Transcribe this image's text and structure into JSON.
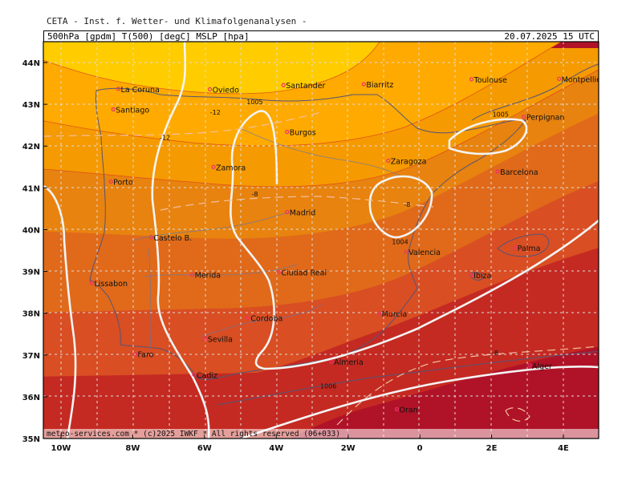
{
  "header": {
    "title": "CETA - Inst. f. Wetter- und Klimafolgenanalysen -",
    "fields": "500hPa [gpdm] T(500) [degC] MSLP [hpa]",
    "datetime": "20.07.2025 15 UTC"
  },
  "footer": "meteo-services.com * (c)2025 IWKF * All rights reserved (06+033)",
  "axes": {
    "lat_labels": [
      "44N",
      "43N",
      "42N",
      "41N",
      "40N",
      "39N",
      "38N",
      "37N",
      "36N",
      "35N"
    ],
    "lon_labels": [
      "10W",
      "8W",
      "6W",
      "4W",
      "2W",
      "0",
      "2E",
      "4E"
    ]
  },
  "cities": [
    {
      "name": "La Coruna",
      "lon": -8.4,
      "lat": 43.37
    },
    {
      "name": "Oviedo",
      "lon": -5.85,
      "lat": 43.36
    },
    {
      "name": "Santander",
      "lon": -3.8,
      "lat": 43.46
    },
    {
      "name": "Biarritz",
      "lon": -1.56,
      "lat": 43.48
    },
    {
      "name": "Toulouse",
      "lon": 1.44,
      "lat": 43.6
    },
    {
      "name": "Montpellier",
      "lon": 3.88,
      "lat": 43.61
    },
    {
      "name": "Santiago",
      "lon": -8.54,
      "lat": 42.88
    },
    {
      "name": "Perpignan",
      "lon": 2.9,
      "lat": 42.7
    },
    {
      "name": "Burgos",
      "lon": -3.7,
      "lat": 42.34
    },
    {
      "name": "Zaragoza",
      "lon": -0.88,
      "lat": 41.65
    },
    {
      "name": "Barcelona",
      "lon": 2.17,
      "lat": 41.39
    },
    {
      "name": "Zamora",
      "lon": -5.75,
      "lat": 41.5
    },
    {
      "name": "Porto",
      "lon": -8.61,
      "lat": 41.15
    },
    {
      "name": "Madrid",
      "lon": -3.7,
      "lat": 40.42
    },
    {
      "name": "Castelo B.",
      "lon": -7.49,
      "lat": 39.82
    },
    {
      "name": "Valencia",
      "lon": -0.38,
      "lat": 39.47
    },
    {
      "name": "Palma",
      "lon": 2.65,
      "lat": 39.57
    },
    {
      "name": "Ibiza",
      "lon": 1.43,
      "lat": 38.91
    },
    {
      "name": "Lissabon",
      "lon": -9.14,
      "lat": 38.72
    },
    {
      "name": "Merida",
      "lon": -6.34,
      "lat": 38.92
    },
    {
      "name": "Ciudad Real",
      "lon": -3.93,
      "lat": 38.98
    },
    {
      "name": "Murcia",
      "lon": -1.13,
      "lat": 37.99
    },
    {
      "name": "Cordoba",
      "lon": -4.78,
      "lat": 37.89
    },
    {
      "name": "Faro",
      "lon": -7.93,
      "lat": 37.02
    },
    {
      "name": "Sevilla",
      "lon": -5.98,
      "lat": 37.39
    },
    {
      "name": "Almeria",
      "lon": -2.46,
      "lat": 36.84
    },
    {
      "name": "Cadiz",
      "lon": -6.29,
      "lat": 36.53
    },
    {
      "name": "Alger",
      "lon": 3.06,
      "lat": 36.75
    },
    {
      "name": "Oran",
      "lon": -0.64,
      "lat": 35.7
    }
  ],
  "contour_labels": [
    {
      "text": "1005",
      "lon": -4.6,
      "lat": 43.0
    },
    {
      "text": "1004",
      "lon": -0.55,
      "lat": 39.65
    },
    {
      "text": "1006",
      "lon": -2.55,
      "lat": 36.2
    },
    {
      "text": "1005",
      "lon": 2.25,
      "lat": 42.7
    },
    {
      "text": "-12",
      "lon": -5.7,
      "lat": 42.75
    },
    {
      "text": "-12",
      "lon": -7.1,
      "lat": 42.15
    },
    {
      "text": "-8",
      "lon": -4.6,
      "lat": 40.8
    },
    {
      "text": "-8",
      "lon": -0.35,
      "lat": 40.55
    },
    {
      "text": "-8",
      "lon": 2.1,
      "lat": 37.0
    }
  ],
  "colors": {
    "band1": "#ffcc00",
    "band2": "#ffaa00",
    "band3": "#f59a00",
    "band4": "#e8830f",
    "band5": "#e06a1a",
    "band6": "#d94e22",
    "band7": "#c42a22",
    "band8": "#b01328",
    "isobar": "#f4f4f4",
    "coast": "#555577",
    "marker": "#ee3366"
  }
}
